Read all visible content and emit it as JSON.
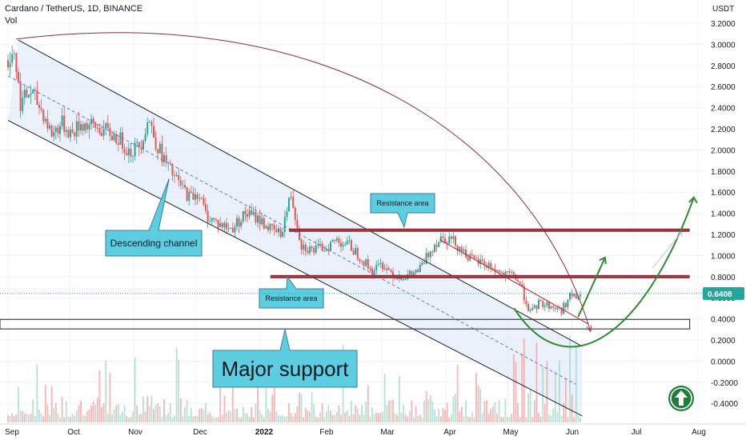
{
  "header": {
    "symbol_line": "Cardano / TetherUS, 1D, BINANCE",
    "vol_label": "Vol"
  },
  "badge_icon": "arrow-up-circle-icon",
  "chart_data": {
    "type": "candlestick",
    "title": "Cardano / TetherUS, 1D, BINANCE",
    "y_axis_label": "USDT",
    "ylim": [
      -0.48,
      3.32
    ],
    "x_tick_labels": [
      "Sep",
      "Oct",
      "Nov",
      "Dec",
      "2022",
      "Feb",
      "Mar",
      "Apr",
      "May",
      "Jun",
      "Jul",
      "Aug"
    ],
    "y_tick_labels": [
      "3.2000",
      "3.0000",
      "2.8000",
      "2.6000",
      "2.4000",
      "2.2000",
      "2.0000",
      "1.8000",
      "1.6000",
      "1.4000",
      "1.2000",
      "1.0000",
      "0.8000",
      "0.6000",
      "0.4000",
      "0.2000",
      "0.0000",
      "-0.2000",
      "-0.4000"
    ],
    "y_ticks": [
      3.2,
      3.0,
      2.8,
      2.6,
      2.4,
      2.2,
      2.0,
      1.8,
      1.6,
      1.4,
      1.2,
      1.0,
      0.8,
      0.6,
      0.4,
      0.2,
      0.0,
      -0.2,
      -0.4
    ],
    "last_price": "0.6408",
    "last_price_value": 0.6408,
    "price_path": [
      {
        "d": "2021-09-01",
        "p": 2.85
      },
      {
        "d": "2021-09-04",
        "p": 2.95
      },
      {
        "d": "2021-09-07",
        "p": 2.45
      },
      {
        "d": "2021-09-12",
        "p": 2.55
      },
      {
        "d": "2021-09-18",
        "p": 2.35
      },
      {
        "d": "2021-09-22",
        "p": 2.15
      },
      {
        "d": "2021-09-27",
        "p": 2.25
      },
      {
        "d": "2021-10-02",
        "p": 2.15
      },
      {
        "d": "2021-10-06",
        "p": 2.25
      },
      {
        "d": "2021-10-12",
        "p": 2.22
      },
      {
        "d": "2021-10-18",
        "p": 2.18
      },
      {
        "d": "2021-10-25",
        "p": 2.1
      },
      {
        "d": "2021-10-30",
        "p": 1.98
      },
      {
        "d": "2021-11-04",
        "p": 2.05
      },
      {
        "d": "2021-11-08",
        "p": 2.3
      },
      {
        "d": "2021-11-12",
        "p": 2.05
      },
      {
        "d": "2021-11-17",
        "p": 1.85
      },
      {
        "d": "2021-11-22",
        "p": 1.7
      },
      {
        "d": "2021-11-28",
        "p": 1.55
      },
      {
        "d": "2021-12-02",
        "p": 1.6
      },
      {
        "d": "2021-12-06",
        "p": 1.38
      },
      {
        "d": "2021-12-12",
        "p": 1.3
      },
      {
        "d": "2021-12-18",
        "p": 1.25
      },
      {
        "d": "2021-12-25",
        "p": 1.4
      },
      {
        "d": "2021-12-31",
        "p": 1.35
      },
      {
        "d": "2022-01-06",
        "p": 1.25
      },
      {
        "d": "2022-01-11",
        "p": 1.2
      },
      {
        "d": "2022-01-16",
        "p": 1.58
      },
      {
        "d": "2022-01-21",
        "p": 1.1
      },
      {
        "d": "2022-01-26",
        "p": 1.05
      },
      {
        "d": "2022-02-02",
        "p": 1.08
      },
      {
        "d": "2022-02-07",
        "p": 1.15
      },
      {
        "d": "2022-02-13",
        "p": 1.1
      },
      {
        "d": "2022-02-19",
        "p": 0.98
      },
      {
        "d": "2022-02-24",
        "p": 0.85
      },
      {
        "d": "2022-03-01",
        "p": 0.92
      },
      {
        "d": "2022-03-07",
        "p": 0.82
      },
      {
        "d": "2022-03-13",
        "p": 0.8
      },
      {
        "d": "2022-03-19",
        "p": 0.86
      },
      {
        "d": "2022-03-26",
        "p": 1.1
      },
      {
        "d": "2022-03-30",
        "p": 1.18
      },
      {
        "d": "2022-04-04",
        "p": 1.15
      },
      {
        "d": "2022-04-09",
        "p": 1.05
      },
      {
        "d": "2022-04-14",
        "p": 0.95
      },
      {
        "d": "2022-04-19",
        "p": 0.93
      },
      {
        "d": "2022-04-24",
        "p": 0.88
      },
      {
        "d": "2022-04-29",
        "p": 0.8
      },
      {
        "d": "2022-05-04",
        "p": 0.82
      },
      {
        "d": "2022-05-07",
        "p": 0.72
      },
      {
        "d": "2022-05-10",
        "p": 0.55
      },
      {
        "d": "2022-05-12",
        "p": 0.45
      },
      {
        "d": "2022-05-16",
        "p": 0.55
      },
      {
        "d": "2022-05-22",
        "p": 0.52
      },
      {
        "d": "2022-05-27",
        "p": 0.48
      },
      {
        "d": "2022-05-31",
        "p": 0.62
      },
      {
        "d": "2022-06-03",
        "p": 0.6
      },
      {
        "d": "2022-06-06",
        "p": 0.64
      }
    ],
    "annotations": {
      "channel_upper": [
        {
          "d": "2021-09-06",
          "p": 3.04
        },
        {
          "d": "2022-06-06",
          "p": 0.14
        }
      ],
      "channel_lower": [
        {
          "d": "2021-09-01",
          "p": 2.28
        },
        {
          "d": "2022-06-06",
          "p": -0.52
        }
      ],
      "channel_mid": [
        {
          "d": "2021-09-01",
          "p": 2.7
        },
        {
          "d": "2022-06-03",
          "p": -0.22
        }
      ],
      "resistance_high": [
        {
          "d": "2022-01-15",
          "p": 1.24
        },
        {
          "d": "2022-07-28",
          "p": 1.24
        }
      ],
      "resistance_low": [
        {
          "d": "2022-01-06",
          "p": 0.8
        },
        {
          "d": "2022-07-28",
          "p": 0.8
        }
      ],
      "major_support_zone": {
        "from": "2021-09-01",
        "to": "2022-07-28",
        "top": 0.395,
        "bottom": 0.305
      },
      "short_downtrend": [
        {
          "d": "2022-03-29",
          "p": 1.15
        },
        {
          "d": "2022-06-09",
          "p": 0.35
        }
      ],
      "big_arc": [
        {
          "d": "2021-09-05",
          "p": 3.05
        },
        {
          "d": "2022-01-28",
          "p": 3.4
        },
        {
          "d": "2022-05-12",
          "p": 2.2
        },
        {
          "d": "2022-06-10",
          "p": 0.28
        }
      ],
      "green_curve": [
        {
          "d": "2022-05-04",
          "p": 0.5
        },
        {
          "d": "2022-05-30",
          "p": -0.28
        },
        {
          "d": "2022-07-06",
          "p": 0.25
        },
        {
          "d": "2022-07-30",
          "p": 1.55
        }
      ],
      "arrow_mid": [
        {
          "d": "2022-06-04",
          "p": 0.42
        },
        {
          "d": "2022-06-17",
          "p": 0.98
        }
      ],
      "arrow_ghost": [
        {
          "d": "2022-07-10",
          "p": 0.88
        },
        {
          "d": "2022-07-24",
          "p": 1.22
        }
      ],
      "arrow_red_tip": {
        "d": "2022-06-10",
        "p": 0.3
      }
    },
    "labels": [
      {
        "text": "Descending channel",
        "kind": "callout",
        "anchor": {
          "d": "2021-11-18",
          "p": 2.0
        }
      },
      {
        "text": "Resistance area",
        "kind": "callout",
        "anchor": {
          "d": "2022-03-03",
          "p": 1.3
        }
      },
      {
        "text": "Resistance area",
        "kind": "callout",
        "anchor": {
          "d": "2022-01-13",
          "p": 0.82
        }
      },
      {
        "text": "Major support",
        "kind": "callout",
        "anchor": {
          "d": "2021-12-25",
          "p": 0.35
        }
      }
    ]
  }
}
